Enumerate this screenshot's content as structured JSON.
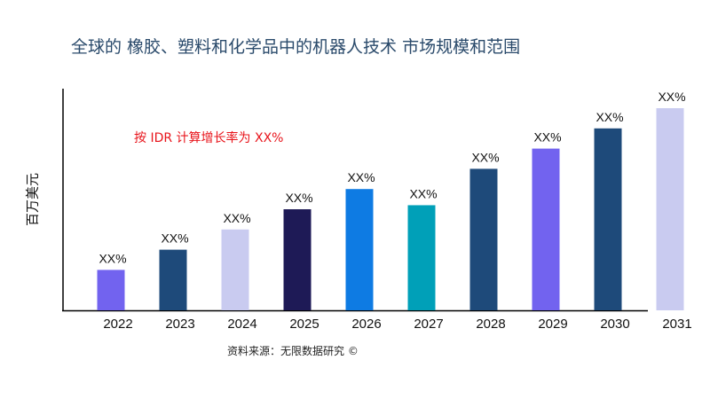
{
  "chart_data": {
    "type": "bar",
    "title": "全球的 橡胶、塑料和化学品中的机器人技术 市场规模和范围",
    "ylabel": "百万美元",
    "xlabel": "",
    "annotation": "按 IDR 计算增长率为 XX%",
    "source": "资料来源：无限数据研究 ©",
    "categories": [
      "2022",
      "2023",
      "2024",
      "2025",
      "2026",
      "2027",
      "2028",
      "2029",
      "2030",
      "2031"
    ],
    "values": [
      20,
      30,
      40,
      50,
      60,
      52,
      70,
      80,
      90,
      100
    ],
    "data_labels": [
      "XX%",
      "XX%",
      "XX%",
      "XX%",
      "XX%",
      "XX%",
      "XX%",
      "XX%",
      "XX%",
      "XX%"
    ],
    "colors": [
      "#7263ef",
      "#1e4a7a",
      "#c9cbf0",
      "#1e1a56",
      "#0e7be3",
      "#00a0b8",
      "#1e4a7a",
      "#7263ef",
      "#1e4a7a",
      "#c9cbf0"
    ],
    "ylim": [
      0,
      100
    ],
    "grid": false,
    "legend": "none"
  }
}
